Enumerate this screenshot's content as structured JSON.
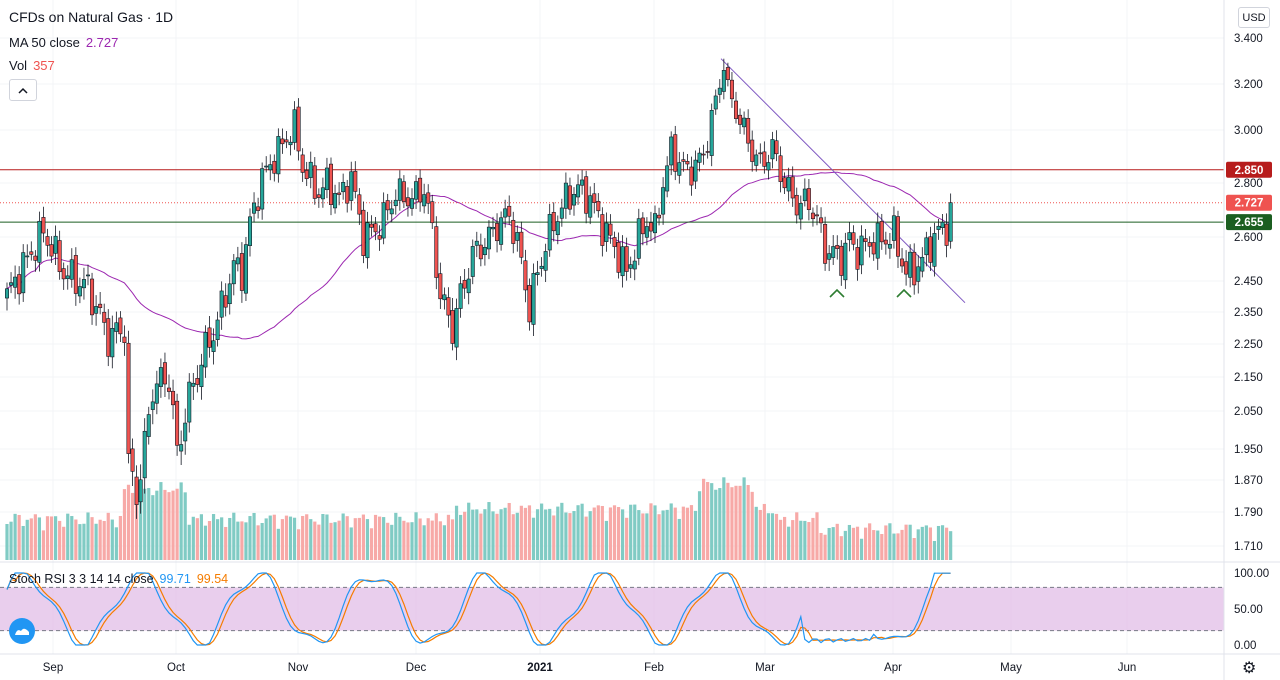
{
  "header": {
    "title": "CFDs on Natural Gas · 1D",
    "ma_label": "MA 50 close",
    "ma_value": "2.727",
    "vol_label": "Vol",
    "vol_value": "357",
    "collapse_icon": "chevron-up-icon"
  },
  "currency": "USD",
  "stoch": {
    "label": "Stoch RSI 3 3 14 14 close",
    "k_value": "99.71",
    "d_value": "99.54"
  },
  "colors": {
    "up": "#26a69a",
    "down": "#ef5350",
    "ma": "#9c27b0",
    "resistance": "#b71c1c",
    "support": "#1b5e20",
    "trendline": "#7e57c2",
    "stoch_k": "#2196f3",
    "stoch_d": "#f57c00",
    "stoch_band": "#e1bee7",
    "price_marker": "#ef5350",
    "pattern_marker": "#2e7d32"
  },
  "chart_data": {
    "type": "candlestick",
    "price_axis": {
      "ticks": [
        3.4,
        3.2,
        3.0,
        2.8,
        2.6,
        2.45,
        2.35,
        2.25,
        2.15,
        2.05,
        1.95,
        1.87,
        1.79,
        1.71
      ],
      "tick_labels": [
        "3.400",
        "3.200",
        "3.000",
        "2.800",
        "2.600",
        "2.450",
        "2.350",
        "2.250",
        "2.150",
        "2.050",
        "1.950",
        "1.870",
        "1.790",
        "1.710"
      ]
    },
    "x_axis": {
      "labels": [
        "Sep",
        "Oct",
        "Nov",
        "Dec",
        "2021",
        "Feb",
        "Mar",
        "Apr",
        "May",
        "Jun"
      ]
    },
    "horizontal_lines": [
      {
        "price": 2.85,
        "label": "2.850",
        "kind": "resistance"
      },
      {
        "price": 2.655,
        "label": "2.655",
        "kind": "support"
      }
    ],
    "last_price": {
      "price": 2.727,
      "label": "2.727"
    },
    "pattern_markers": [
      {
        "date": "Mar 19",
        "label": "^"
      },
      {
        "date": "Apr 5",
        "label": "^"
      }
    ],
    "trendline": [
      {
        "date": "Feb 18",
        "price": 3.31
      },
      {
        "date": "Apr 26",
        "price": 2.38
      }
    ],
    "stoch_axis": {
      "ticks": [
        100,
        50,
        0
      ],
      "tick_labels": [
        "100.00",
        "50.00",
        "0.00"
      ],
      "bands": [
        80,
        20
      ]
    }
  }
}
